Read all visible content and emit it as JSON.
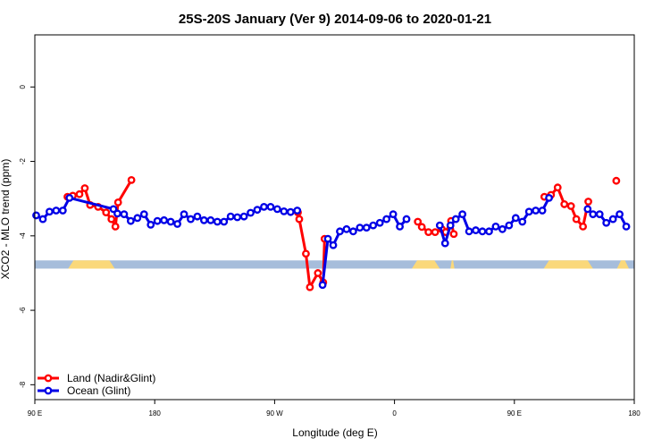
{
  "chart_data": {
    "type": "line",
    "title": "25S-20S January (Ver 9)   2014-09-06 to 2020-01-21",
    "xlabel": "Longitude (deg E)",
    "ylabel": "XCO2 - MLO trend (ppm)",
    "xlim": [
      90,
      540
    ],
    "ylim": [
      -8.4,
      1.4
    ],
    "x_ticks": [
      {
        "value": 90,
        "label": "90 E"
      },
      {
        "value": 180,
        "label": "180"
      },
      {
        "value": 270,
        "label": "90 W"
      },
      {
        "value": 360,
        "label": "0"
      },
      {
        "value": 450,
        "label": "90 E"
      },
      {
        "value": 540,
        "label": "180"
      }
    ],
    "y_ticks": [
      {
        "value": 0,
        "label": "0"
      },
      {
        "value": -2,
        "label": "-2"
      },
      {
        "value": -4,
        "label": "-4"
      },
      {
        "value": -6,
        "label": "-6"
      },
      {
        "value": -8,
        "label": "-8"
      }
    ],
    "legend_position": "bottom-left",
    "colors": {
      "land": "#ff0000",
      "ocean": "#0000e6",
      "ocean_band": "#a6bddb",
      "land_band": "#fad87a"
    },
    "surface_band": {
      "y_range": [
        -4.88,
        -4.66
      ],
      "land_segments": [
        [
          115,
          150
        ],
        [
          373,
          394
        ],
        [
          402,
          405
        ],
        [
          472,
          509
        ],
        [
          527,
          536
        ]
      ]
    },
    "series": [
      {
        "name": "Land (Nadir&Glint)",
        "color": "#ff0000",
        "segments": [
          [
            [
              114.5,
              -2.95
            ],
            [
              118.5,
              -2.92
            ],
            [
              123.5,
              -2.88
            ],
            [
              127.5,
              -2.72
            ],
            [
              131.5,
              -3.17
            ],
            [
              137.5,
              -3.22
            ],
            [
              143.5,
              -3.37
            ],
            [
              147.5,
              -3.55
            ],
            [
              150.5,
              -3.75
            ],
            [
              152.5,
              -3.1
            ],
            [
              162.5,
              -2.5
            ]
          ],
          [
            [
              287.5,
              -3.37
            ],
            [
              288.5,
              -3.55
            ],
            [
              293.5,
              -4.48
            ],
            [
              296.5,
              -5.38
            ],
            [
              302.5,
              -5.0
            ],
            [
              306.5,
              -5.25
            ],
            [
              307.5,
              -4.08
            ]
          ],
          [
            [
              377.5,
              -3.62
            ],
            [
              380.5,
              -3.76
            ],
            [
              385.5,
              -3.9
            ],
            [
              390.5,
              -3.9
            ],
            [
              395.5,
              -3.82
            ],
            [
              398.5,
              -3.9
            ],
            [
              402.5,
              -3.6
            ],
            [
              404.5,
              -3.95
            ]
          ],
          [
            [
              472.5,
              -2.95
            ],
            [
              477.5,
              -2.9
            ],
            [
              482.5,
              -2.7
            ],
            [
              487.5,
              -3.15
            ],
            [
              492.5,
              -3.2
            ],
            [
              496.5,
              -3.55
            ],
            [
              501.5,
              -3.75
            ],
            [
              505.5,
              -3.08
            ]
          ],
          [
            [
              526.5,
              -2.52
            ]
          ]
        ]
      },
      {
        "name": "Ocean (Glint)",
        "color": "#0000e6",
        "segments": [
          [
            [
              91,
              -3.45
            ],
            [
              96,
              -3.55
            ],
            [
              101,
              -3.35
            ],
            [
              106,
              -3.32
            ],
            [
              111,
              -3.32
            ],
            [
              116,
              -2.98
            ],
            [
              149,
              -3.28
            ]
          ],
          [
            [
              152,
              -3.4
            ],
            [
              157,
              -3.42
            ],
            [
              162,
              -3.6
            ],
            [
              167,
              -3.52
            ],
            [
              172,
              -3.42
            ],
            [
              177,
              -3.7
            ],
            [
              182,
              -3.6
            ],
            [
              187,
              -3.58
            ],
            [
              192,
              -3.62
            ],
            [
              197,
              -3.68
            ],
            [
              202,
              -3.42
            ],
            [
              207,
              -3.55
            ],
            [
              212,
              -3.48
            ],
            [
              217,
              -3.58
            ],
            [
              222,
              -3.58
            ],
            [
              227,
              -3.62
            ],
            [
              232,
              -3.62
            ],
            [
              237,
              -3.48
            ],
            [
              242,
              -3.5
            ],
            [
              247,
              -3.48
            ],
            [
              252,
              -3.38
            ],
            [
              257,
              -3.3
            ],
            [
              262,
              -3.22
            ],
            [
              267,
              -3.22
            ],
            [
              272,
              -3.28
            ],
            [
              277,
              -3.34
            ],
            [
              282,
              -3.36
            ],
            [
              287,
              -3.32
            ]
          ],
          [
            [
              306,
              -5.32
            ],
            [
              310,
              -4.08
            ],
            [
              314,
              -4.25
            ],
            [
              319,
              -3.88
            ],
            [
              324,
              -3.82
            ],
            [
              329,
              -3.88
            ],
            [
              334,
              -3.78
            ],
            [
              339,
              -3.78
            ],
            [
              344,
              -3.72
            ],
            [
              349,
              -3.65
            ],
            [
              354,
              -3.55
            ],
            [
              359,
              -3.42
            ],
            [
              364,
              -3.75
            ],
            [
              369,
              -3.55
            ]
          ],
          [
            [
              394,
              -3.72
            ],
            [
              398,
              -4.2
            ],
            [
              402,
              -3.72
            ],
            [
              406,
              -3.55
            ],
            [
              411,
              -3.42
            ],
            [
              416,
              -3.88
            ],
            [
              421,
              -3.85
            ],
            [
              426,
              -3.88
            ],
            [
              431,
              -3.88
            ],
            [
              436,
              -3.75
            ],
            [
              441,
              -3.82
            ],
            [
              446,
              -3.72
            ],
            [
              451,
              -3.52
            ],
            [
              456,
              -3.62
            ],
            [
              461,
              -3.35
            ],
            [
              466,
              -3.32
            ],
            [
              471,
              -3.32
            ],
            [
              476,
              -2.98
            ]
          ],
          [
            [
              505,
              -3.28
            ],
            [
              509,
              -3.42
            ],
            [
              514,
              -3.42
            ],
            [
              519,
              -3.65
            ],
            [
              524,
              -3.55
            ],
            [
              529,
              -3.42
            ],
            [
              534,
              -3.75
            ]
          ]
        ]
      }
    ]
  }
}
